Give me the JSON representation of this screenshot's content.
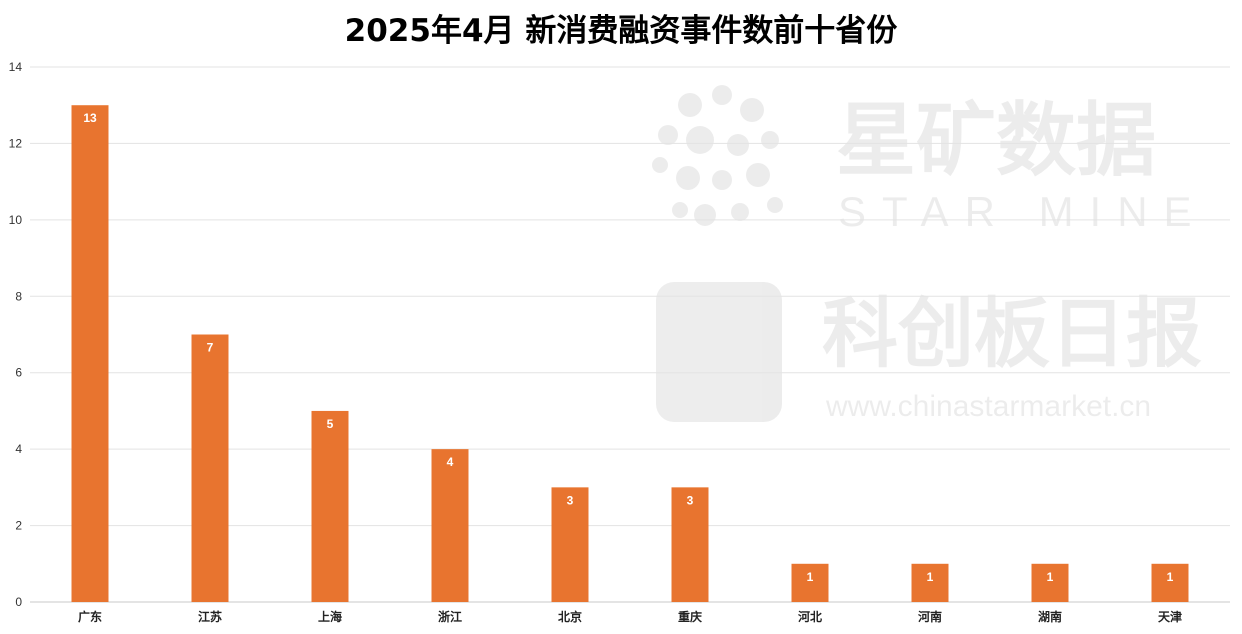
{
  "chart_data": {
    "type": "bar",
    "title": "2025年4月 新消费融资事件数前十省份",
    "categories": [
      "广东",
      "江苏",
      "上海",
      "浙江",
      "北京",
      "重庆",
      "河北",
      "河南",
      "湖南",
      "天津"
    ],
    "values": [
      13,
      7,
      5,
      4,
      3,
      3,
      1,
      1,
      1,
      1
    ],
    "ylim": [
      0,
      14
    ],
    "yticks": [
      0,
      2,
      4,
      6,
      8,
      10,
      12,
      14
    ],
    "xlabel": "",
    "ylabel": "",
    "grid": true,
    "legend": "none",
    "bar_color": "#E8742F",
    "data_labels": true
  },
  "watermark": {
    "brand_cn": "星矿数据",
    "brand_en": "STAR MINE",
    "publisher_cn": "科创板日报",
    "url": "www.chinastarmarket.cn"
  }
}
